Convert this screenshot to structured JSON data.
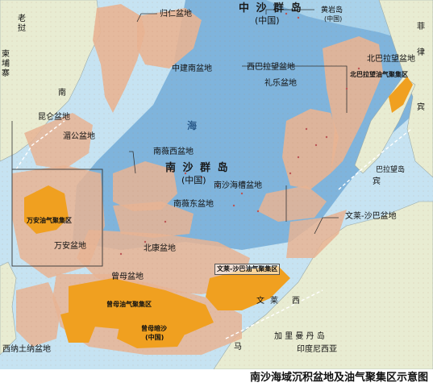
{
  "map": {
    "colors": {
      "sea_deep": "#7fb4dc",
      "sea_shallow": "#c6e3f2",
      "land": "#e8ecd2",
      "basin": "#e8b494",
      "oil_gas": "#f0a020",
      "line": "#333333"
    },
    "islands": {
      "zhongsha": "中 沙 群 岛",
      "zhongsha_cn": "(中国)",
      "nansha": "南 沙 群 岛",
      "nansha_cn": "(中国)",
      "zengmu": "曾母暗沙",
      "zengmu_cn": "(中国)",
      "huangyan": "黄岩岛",
      "huangyan_cn": "(中国)"
    },
    "basins": {
      "guiren": "归仁盆地",
      "zhongjiannan": "中建南盆地",
      "xibalawang": "西巴拉望盆地",
      "lile": "礼乐盆地",
      "beibalawang": "北巴拉望盆地",
      "kunlun": "昆仑盆地",
      "meigong": "湄公盆地",
      "nanweixi": "南薇西盆地",
      "nansha_haicao": "南沙海槽盆地",
      "nanweidong": "南薇东盆地",
      "wenlai_shaba": "文莱-沙巴盆地",
      "wanan": "万安盆地",
      "beikang": "北康盆地",
      "zengmu_basin": "曾母盆地",
      "xinazhuna": "西纳土纳盆地",
      "balawang": "巴拉望岛"
    },
    "oil_gas_zones": {
      "wanan_zone": "万安油气聚集区",
      "zengmu_zone": "曾母油气聚集区",
      "wenlai_zone": "文莱-沙巴油气聚集区",
      "beibalawang_zone": "北巴拉望油气聚集区"
    },
    "place_labels": {
      "laowo_1": "老",
      "laowo_2": "挝",
      "jianpuzhai_1": "柬",
      "jianpuzhai_2": "埔",
      "jianpuzhai_3": "寨",
      "yuenan": "南",
      "fei": "菲",
      "lv": "律",
      "bin": "宾",
      "sea_1": "海",
      "wenlai_1": "文",
      "wenlai_2": "莱",
      "xi": "西",
      "ma": "马",
      "kalimantan": "加 里 曼 丹 岛",
      "yinni": "印度尼西亚"
    }
  },
  "caption": "南沙海域沉积盆地及油气聚集区示意图"
}
